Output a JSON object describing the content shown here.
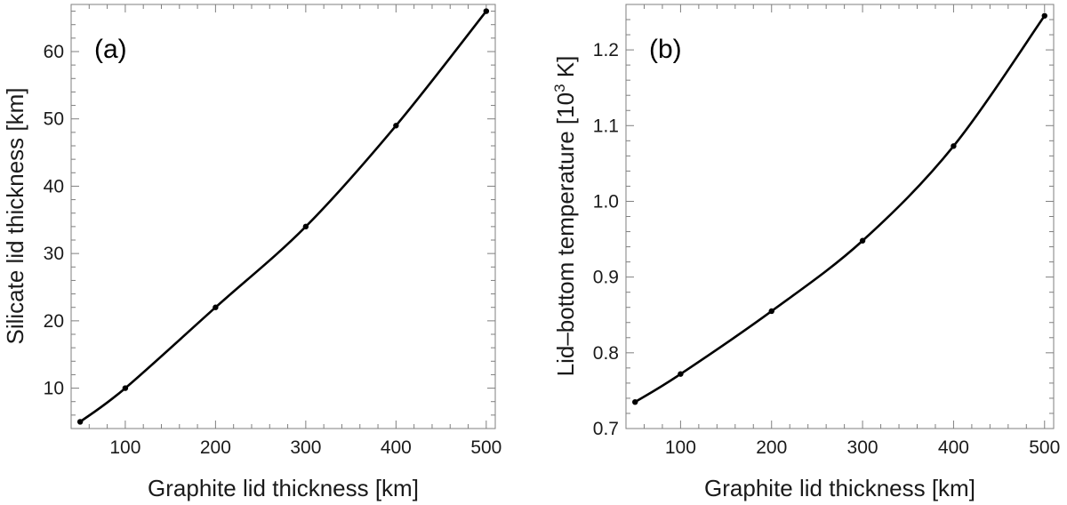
{
  "chart_data": [
    {
      "type": "line",
      "panel_label": "(a)",
      "xlabel": "Graphite lid thickness [km]",
      "ylabel": "Silicate lid thickness [km]",
      "xlim": [
        40,
        510
      ],
      "ylim": [
        4,
        67
      ],
      "xticks": [
        100,
        200,
        300,
        400,
        500
      ],
      "yticks": [
        10,
        20,
        30,
        40,
        50,
        60
      ],
      "points": [
        {
          "x": 50,
          "y": 5
        },
        {
          "x": 100,
          "y": 10
        },
        {
          "x": 200,
          "y": 22
        },
        {
          "x": 300,
          "y": 34
        },
        {
          "x": 400,
          "y": 49
        },
        {
          "x": 500,
          "y": 66
        }
      ]
    },
    {
      "type": "line",
      "panel_label": "(b)",
      "xlabel": "Graphite lid thickness [km]",
      "ylabel_main": "Lid–bottom temperature [10",
      "ylabel_sup": "3",
      "ylabel_end": " K]",
      "xlim": [
        40,
        510
      ],
      "ylim": [
        0.7,
        1.26
      ],
      "xticks": [
        100,
        200,
        300,
        400,
        500
      ],
      "yticks": [
        0.7,
        0.8,
        0.9,
        1.0,
        1.1,
        1.2
      ],
      "ytick_labels": [
        "0.7",
        "0.8",
        "0.9",
        "1.0",
        "1.1",
        "1.2"
      ],
      "points": [
        {
          "x": 50,
          "y": 0.735
        },
        {
          "x": 100,
          "y": 0.772
        },
        {
          "x": 200,
          "y": 0.855
        },
        {
          "x": 300,
          "y": 0.948
        },
        {
          "x": 400,
          "y": 1.073
        },
        {
          "x": 500,
          "y": 1.245
        }
      ]
    }
  ]
}
